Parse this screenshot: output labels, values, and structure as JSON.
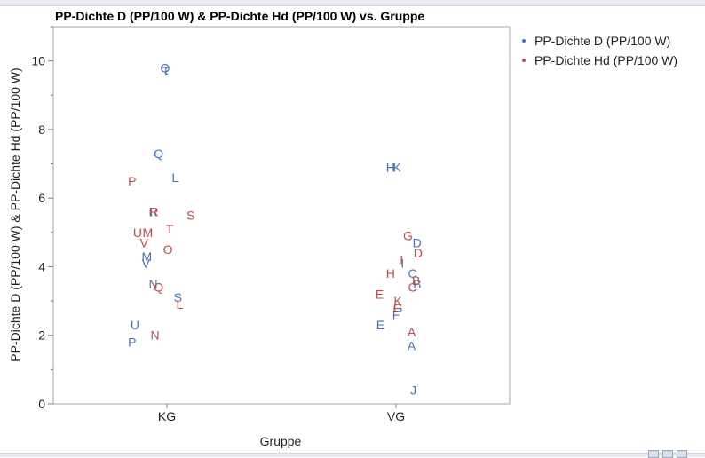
{
  "chart_data": {
    "type": "scatter",
    "title": "PP-Dichte D (PP/100 W) & PP-Dichte Hd (PP/100 W) vs. Gruppe",
    "xlabel": "Gruppe",
    "ylabel": "PP-Dichte D (PP/100 W) & PP-Dichte Hd (PP/100 W)",
    "categories": [
      "KG",
      "VG"
    ],
    "ylim": [
      0,
      11
    ],
    "yticks": [
      0,
      2,
      4,
      6,
      8,
      10
    ],
    "legend_position": "right",
    "grid": false,
    "series": [
      {
        "name": "PP-Dichte D (PP/100 W)",
        "color": "#4472c4",
        "points": [
          {
            "label": "Q",
            "group": "KG",
            "jitter": -0.02,
            "y": 9.8
          },
          {
            "label": "T",
            "group": "KG",
            "jitter": -0.01,
            "y": 9.7
          },
          {
            "label": "Q",
            "group": "KG",
            "jitter": -0.09,
            "y": 7.3
          },
          {
            "label": "L",
            "group": "KG",
            "jitter": 0.09,
            "y": 6.6
          },
          {
            "label": "R",
            "group": "KG",
            "jitter": -0.15,
            "y": 5.6
          },
          {
            "label": "M",
            "group": "KG",
            "jitter": -0.22,
            "y": 4.3
          },
          {
            "label": "V",
            "group": "KG",
            "jitter": -0.23,
            "y": 4.1
          },
          {
            "label": "N",
            "group": "KG",
            "jitter": -0.15,
            "y": 3.5
          },
          {
            "label": "S",
            "group": "KG",
            "jitter": 0.12,
            "y": 3.1
          },
          {
            "label": "U",
            "group": "KG",
            "jitter": -0.35,
            "y": 2.3
          },
          {
            "label": "P",
            "group": "KG",
            "jitter": -0.38,
            "y": 1.8
          },
          {
            "label": "H",
            "group": "VG",
            "jitter": -0.06,
            "y": 6.9
          },
          {
            "label": "K",
            "group": "VG",
            "jitter": 0.01,
            "y": 6.9
          },
          {
            "label": "D",
            "group": "VG",
            "jitter": 0.23,
            "y": 4.7
          },
          {
            "label": "I",
            "group": "VG",
            "jitter": 0.07,
            "y": 4.1
          },
          {
            "label": "C",
            "group": "VG",
            "jitter": 0.18,
            "y": 3.8
          },
          {
            "label": "B",
            "group": "VG",
            "jitter": 0.23,
            "y": 3.5
          },
          {
            "label": "G",
            "group": "VG",
            "jitter": 0.02,
            "y": 2.8
          },
          {
            "label": "F",
            "group": "VG",
            "jitter": 0.0,
            "y": 2.6
          },
          {
            "label": "E",
            "group": "VG",
            "jitter": -0.17,
            "y": 2.3
          },
          {
            "label": "A",
            "group": "VG",
            "jitter": 0.17,
            "y": 1.7
          },
          {
            "label": "J",
            "group": "VG",
            "jitter": 0.19,
            "y": 0.4
          }
        ]
      },
      {
        "name": "PP-Dichte Hd (PP/100 W)",
        "color": "#c9484b",
        "points": [
          {
            "label": "P",
            "group": "KG",
            "jitter": -0.38,
            "y": 6.5
          },
          {
            "label": "R",
            "group": "KG",
            "jitter": -0.14,
            "y": 5.6
          },
          {
            "label": "S",
            "group": "KG",
            "jitter": 0.26,
            "y": 5.5
          },
          {
            "label": "T",
            "group": "KG",
            "jitter": 0.03,
            "y": 5.1
          },
          {
            "label": "U",
            "group": "KG",
            "jitter": -0.32,
            "y": 5.0
          },
          {
            "label": "M",
            "group": "KG",
            "jitter": -0.21,
            "y": 5.0
          },
          {
            "label": "V",
            "group": "KG",
            "jitter": -0.25,
            "y": 4.7
          },
          {
            "label": "O",
            "group": "KG",
            "jitter": 0.01,
            "y": 4.5
          },
          {
            "label": "Q",
            "group": "KG",
            "jitter": -0.09,
            "y": 3.4
          },
          {
            "label": "L",
            "group": "KG",
            "jitter": 0.14,
            "y": 2.9
          },
          {
            "label": "N",
            "group": "KG",
            "jitter": -0.13,
            "y": 2.0
          },
          {
            "label": "G",
            "group": "VG",
            "jitter": 0.13,
            "y": 4.9
          },
          {
            "label": "D",
            "group": "VG",
            "jitter": 0.24,
            "y": 4.4
          },
          {
            "label": "I",
            "group": "VG",
            "jitter": 0.06,
            "y": 4.2
          },
          {
            "label": "H",
            "group": "VG",
            "jitter": -0.06,
            "y": 3.8
          },
          {
            "label": "B",
            "group": "VG",
            "jitter": 0.22,
            "y": 3.6
          },
          {
            "label": "C",
            "group": "VG",
            "jitter": 0.18,
            "y": 3.4
          },
          {
            "label": "E",
            "group": "VG",
            "jitter": -0.18,
            "y": 3.2
          },
          {
            "label": "K",
            "group": "VG",
            "jitter": 0.02,
            "y": 3.0
          },
          {
            "label": "F",
            "group": "VG",
            "jitter": 0.01,
            "y": 2.8
          },
          {
            "label": "A",
            "group": "VG",
            "jitter": 0.17,
            "y": 2.1
          }
        ]
      }
    ]
  }
}
